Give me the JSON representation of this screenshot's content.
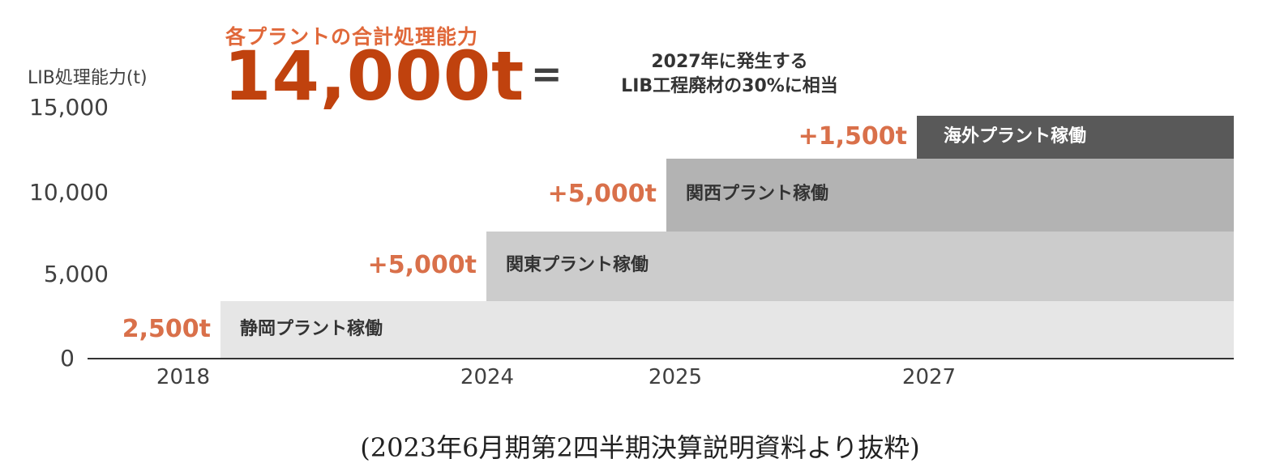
{
  "chart_data": {
    "type": "area",
    "ylabel": "LIB処理能力(t)",
    "subtitle": "各プラントの合計処理能力",
    "headline_value": "14,000t",
    "equals_sign": "=",
    "equivalence_lines": [
      "2027年に発生する",
      "LIB工程廃材の30%に相当"
    ],
    "y_ticks": [
      "0",
      "5,000",
      "10,000",
      "15,000"
    ],
    "ylim": [
      0,
      15000
    ],
    "x_ticks": [
      "2018",
      "2024",
      "2025",
      "2027"
    ],
    "steps": [
      {
        "year": 2018,
        "increment": 2500,
        "increment_label": "2,500t",
        "plant_label": "静岡プラント稼働",
        "color": "#e6e6e6"
      },
      {
        "year": 2024,
        "increment": 5000,
        "increment_label": "+5,000t",
        "plant_label": "関東プラント稼働",
        "color": "#cccccc"
      },
      {
        "year": 2025,
        "increment": 5000,
        "increment_label": "+5,000t",
        "plant_label": "関西プラント稼働",
        "color": "#b3b3b3"
      },
      {
        "year": 2027,
        "increment": 1500,
        "increment_label": "+1,500t",
        "plant_label": "海外プラント稼働",
        "color": "#595959"
      }
    ],
    "grid": false
  },
  "source_note": "(2023年6月期第2四半期決算説明資料より抜粋)"
}
